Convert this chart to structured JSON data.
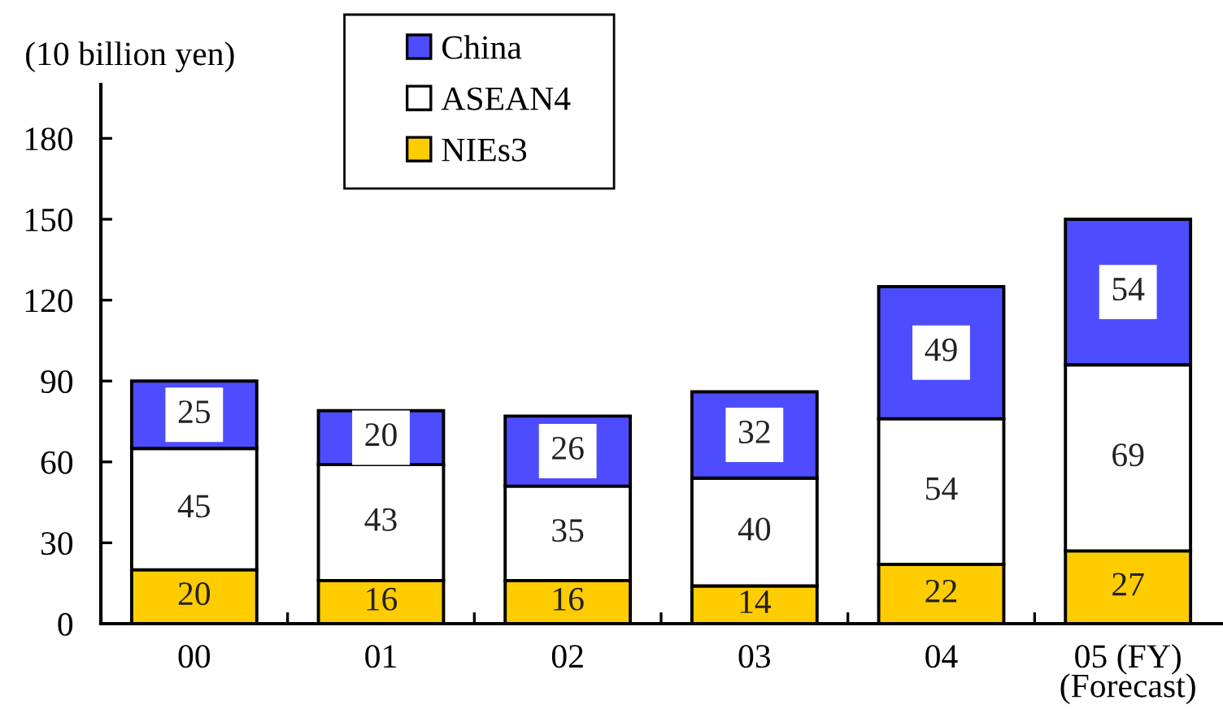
{
  "chart_data": {
    "type": "bar",
    "stacked": true,
    "ylabel": "(10 billion yen)",
    "categories": [
      "00",
      "01",
      "02",
      "03",
      "04",
      "05 (FY)\n(Forecast)"
    ],
    "series": [
      {
        "name": "NIEs3",
        "color": "#ffcc00",
        "values": [
          20,
          16,
          16,
          14,
          22,
          27
        ]
      },
      {
        "name": "ASEAN4",
        "color": "#ffffff",
        "values": [
          45,
          43,
          35,
          40,
          54,
          69
        ]
      },
      {
        "name": "China",
        "color": "#4d4dff",
        "values": [
          25,
          20,
          26,
          32,
          49,
          54
        ]
      }
    ],
    "ylim": [
      0,
      200
    ],
    "yticks": [
      0,
      30,
      60,
      90,
      120,
      150,
      180
    ],
    "data_labels": true,
    "grid": false,
    "legend": "top"
  }
}
